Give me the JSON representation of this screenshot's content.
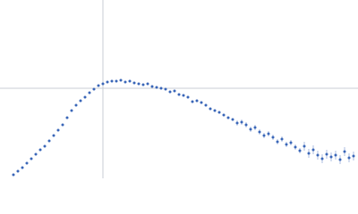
{
  "chart_data": {
    "type": "scatter",
    "x": [
      0.15,
      0.2,
      0.25,
      0.3,
      0.35,
      0.4,
      0.45,
      0.5,
      0.55,
      0.6,
      0.65,
      0.7,
      0.75,
      0.8,
      0.85,
      0.9,
      0.95,
      1.0,
      1.05,
      1.1,
      1.15,
      1.2,
      1.25,
      1.3,
      1.35,
      1.4,
      1.45,
      1.5,
      1.55,
      1.6,
      1.65,
      1.7,
      1.75,
      1.8,
      1.85,
      1.9,
      1.95,
      2.0,
      2.05,
      2.1,
      2.15,
      2.2,
      2.25,
      2.3,
      2.35,
      2.4,
      2.45,
      2.5,
      2.55,
      2.6,
      2.65,
      2.7,
      2.75,
      2.8,
      2.85,
      2.9,
      2.95,
      3.0,
      3.05,
      3.1,
      3.15,
      3.2,
      3.25,
      3.3,
      3.35,
      3.4,
      3.45,
      3.5,
      3.55,
      3.6,
      3.65,
      3.7,
      3.75,
      3.8,
      3.85,
      3.9,
      3.95
    ],
    "series": [
      {
        "color": "#3a66b8",
        "values": [
          0.04,
          0.08,
          0.12,
          0.17,
          0.22,
          0.27,
          0.32,
          0.36,
          0.42,
          0.48,
          0.54,
          0.6,
          0.68,
          0.76,
          0.82,
          0.87,
          0.91,
          0.96,
          1.0,
          1.04,
          1.06,
          1.08,
          1.09,
          1.09,
          1.1,
          1.08,
          1.09,
          1.07,
          1.06,
          1.05,
          1.06,
          1.03,
          1.02,
          1.01,
          1.0,
          0.97,
          0.98,
          0.94,
          0.93,
          0.91,
          0.86,
          0.87,
          0.85,
          0.82,
          0.78,
          0.76,
          0.74,
          0.71,
          0.68,
          0.66,
          0.62,
          0.63,
          0.6,
          0.55,
          0.57,
          0.52,
          0.48,
          0.5,
          0.46,
          0.41,
          0.44,
          0.38,
          0.4,
          0.35,
          0.31,
          0.36,
          0.28,
          0.32,
          0.26,
          0.22,
          0.27,
          0.24,
          0.26,
          0.21,
          0.3,
          0.23,
          0.25
        ],
        "errors": [
          0.005,
          0.005,
          0.005,
          0.005,
          0.005,
          0.005,
          0.005,
          0.005,
          0.005,
          0.005,
          0.005,
          0.005,
          0.005,
          0.005,
          0.005,
          0.005,
          0.005,
          0.005,
          0.005,
          0.005,
          0.005,
          0.005,
          0.005,
          0.005,
          0.005,
          0.005,
          0.005,
          0.005,
          0.005,
          0.005,
          0.015,
          0.015,
          0.015,
          0.015,
          0.015,
          0.015,
          0.015,
          0.015,
          0.015,
          0.015,
          0.015,
          0.015,
          0.015,
          0.015,
          0.015,
          0.015,
          0.015,
          0.015,
          0.015,
          0.015,
          0.03,
          0.03,
          0.03,
          0.03,
          0.03,
          0.03,
          0.03,
          0.03,
          0.03,
          0.03,
          0.03,
          0.03,
          0.03,
          0.03,
          0.03,
          0.05,
          0.05,
          0.05,
          0.05,
          0.05,
          0.05,
          0.05,
          0.05,
          0.05,
          0.05,
          0.05,
          0.05
        ]
      }
    ],
    "xlim": [
      0,
      4
    ],
    "ylim": [
      0,
      2
    ],
    "vlines": [
      1.15
    ],
    "hlines": [
      1.01
    ]
  }
}
